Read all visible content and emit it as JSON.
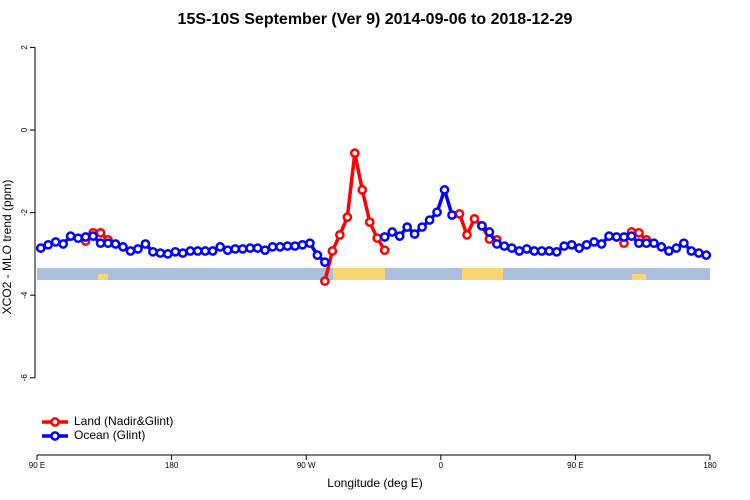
{
  "chart_data": {
    "type": "line",
    "title": "15S-10S September (Ver 9)   2014-09-06 to 2018-12-29",
    "xlabel": "Longitude (deg E)",
    "ylabel": "XCO2 - MLO trend (ppm)",
    "x": [
      92.5,
      97.5,
      102.5,
      107.5,
      112.5,
      117.5,
      122.5,
      127.5,
      132.5,
      137.5,
      142.5,
      147.5,
      152.5,
      157.5,
      162.5,
      167.5,
      172.5,
      177.5,
      182.5,
      187.5,
      192.5,
      197.5,
      202.5,
      207.5,
      212.5,
      217.5,
      222.5,
      227.5,
      232.5,
      237.5,
      242.5,
      247.5,
      252.5,
      257.5,
      262.5,
      267.5,
      272.5,
      277.5,
      282.5,
      287.5,
      292.5,
      297.5,
      302.5,
      307.5,
      312.5,
      317.5,
      322.5,
      327.5,
      332.5,
      337.5,
      342.5,
      347.5,
      352.5,
      357.5,
      362.5,
      367.5,
      372.5,
      377.5,
      382.5,
      387.5,
      392.5,
      397.5,
      402.5,
      407.5,
      412.5,
      417.5,
      422.5,
      427.5,
      432.5,
      437.5,
      442.5,
      447.5,
      452.5,
      457.5,
      462.5,
      467.5,
      472.5,
      477.5,
      482.5,
      487.5,
      492.5,
      497.5,
      502.5,
      507.5,
      512.5,
      517.5,
      522.5,
      527.5,
      532.5,
      537.5
    ],
    "series": [
      {
        "name": "Land (Nadir&Glint)",
        "color": "#ff0000",
        "values": [
          null,
          null,
          null,
          null,
          null,
          null,
          -2.69,
          -2.49,
          -2.49,
          -2.66,
          null,
          null,
          null,
          null,
          null,
          null,
          null,
          null,
          null,
          null,
          null,
          null,
          null,
          null,
          null,
          null,
          null,
          null,
          null,
          null,
          null,
          null,
          null,
          null,
          null,
          null,
          null,
          null,
          -3.66,
          -2.93,
          -2.54,
          -2.11,
          -0.56,
          -1.45,
          -2.23,
          -2.62,
          -2.91,
          null,
          null,
          null,
          null,
          null,
          null,
          null,
          null,
          null,
          -2.03,
          -2.54,
          -2.15,
          -2.32,
          -2.64,
          -2.66,
          null,
          null,
          null,
          null,
          null,
          null,
          null,
          null,
          null,
          null,
          null,
          null,
          null,
          null,
          null,
          null,
          -2.74,
          -2.47,
          -2.49,
          -2.66,
          null,
          null,
          null,
          null,
          null,
          null,
          null,
          null
        ]
      },
      {
        "name": "Ocean (Glint)",
        "color": "#0000ff",
        "values": [
          -2.86,
          -2.78,
          -2.71,
          -2.76,
          -2.57,
          -2.62,
          -2.59,
          -2.57,
          -2.74,
          -2.74,
          -2.76,
          -2.83,
          -2.93,
          -2.88,
          -2.76,
          -2.95,
          -2.98,
          -3.0,
          -2.95,
          -2.98,
          -2.93,
          -2.93,
          -2.93,
          -2.93,
          -2.83,
          -2.91,
          -2.88,
          -2.88,
          -2.86,
          -2.86,
          -2.91,
          -2.83,
          -2.83,
          -2.81,
          -2.81,
          -2.78,
          -2.74,
          -3.03,
          -3.2,
          null,
          null,
          null,
          null,
          null,
          null,
          null,
          -2.59,
          -2.47,
          -2.57,
          -2.35,
          -2.52,
          -2.35,
          -2.18,
          -1.99,
          -1.45,
          -2.06,
          null,
          null,
          null,
          -2.32,
          -2.47,
          -2.76,
          -2.81,
          -2.86,
          -2.93,
          -2.88,
          -2.93,
          -2.93,
          -2.93,
          -2.95,
          -2.81,
          -2.78,
          -2.86,
          -2.78,
          -2.71,
          -2.76,
          -2.57,
          -2.59,
          -2.59,
          -2.57,
          -2.74,
          -2.74,
          -2.74,
          -2.83,
          -2.93,
          -2.86,
          -2.74,
          -2.93,
          -2.98,
          -3.03
        ]
      }
    ],
    "xlim": [
      90,
      540
    ],
    "xticks": [
      {
        "value": 90,
        "label": "90 E"
      },
      180,
      {
        "value": 270,
        "label": "90 W"
      },
      {
        "value": 360,
        "label": "0"
      },
      {
        "value": 450,
        "label": "90 E"
      },
      {
        "value": 540,
        "label": "180"
      }
    ],
    "ylim": [
      -7.87,
      2.18
    ],
    "yticks": [
      2,
      0,
      -2,
      -4,
      -6
    ],
    "legend": "bottom-left"
  }
}
